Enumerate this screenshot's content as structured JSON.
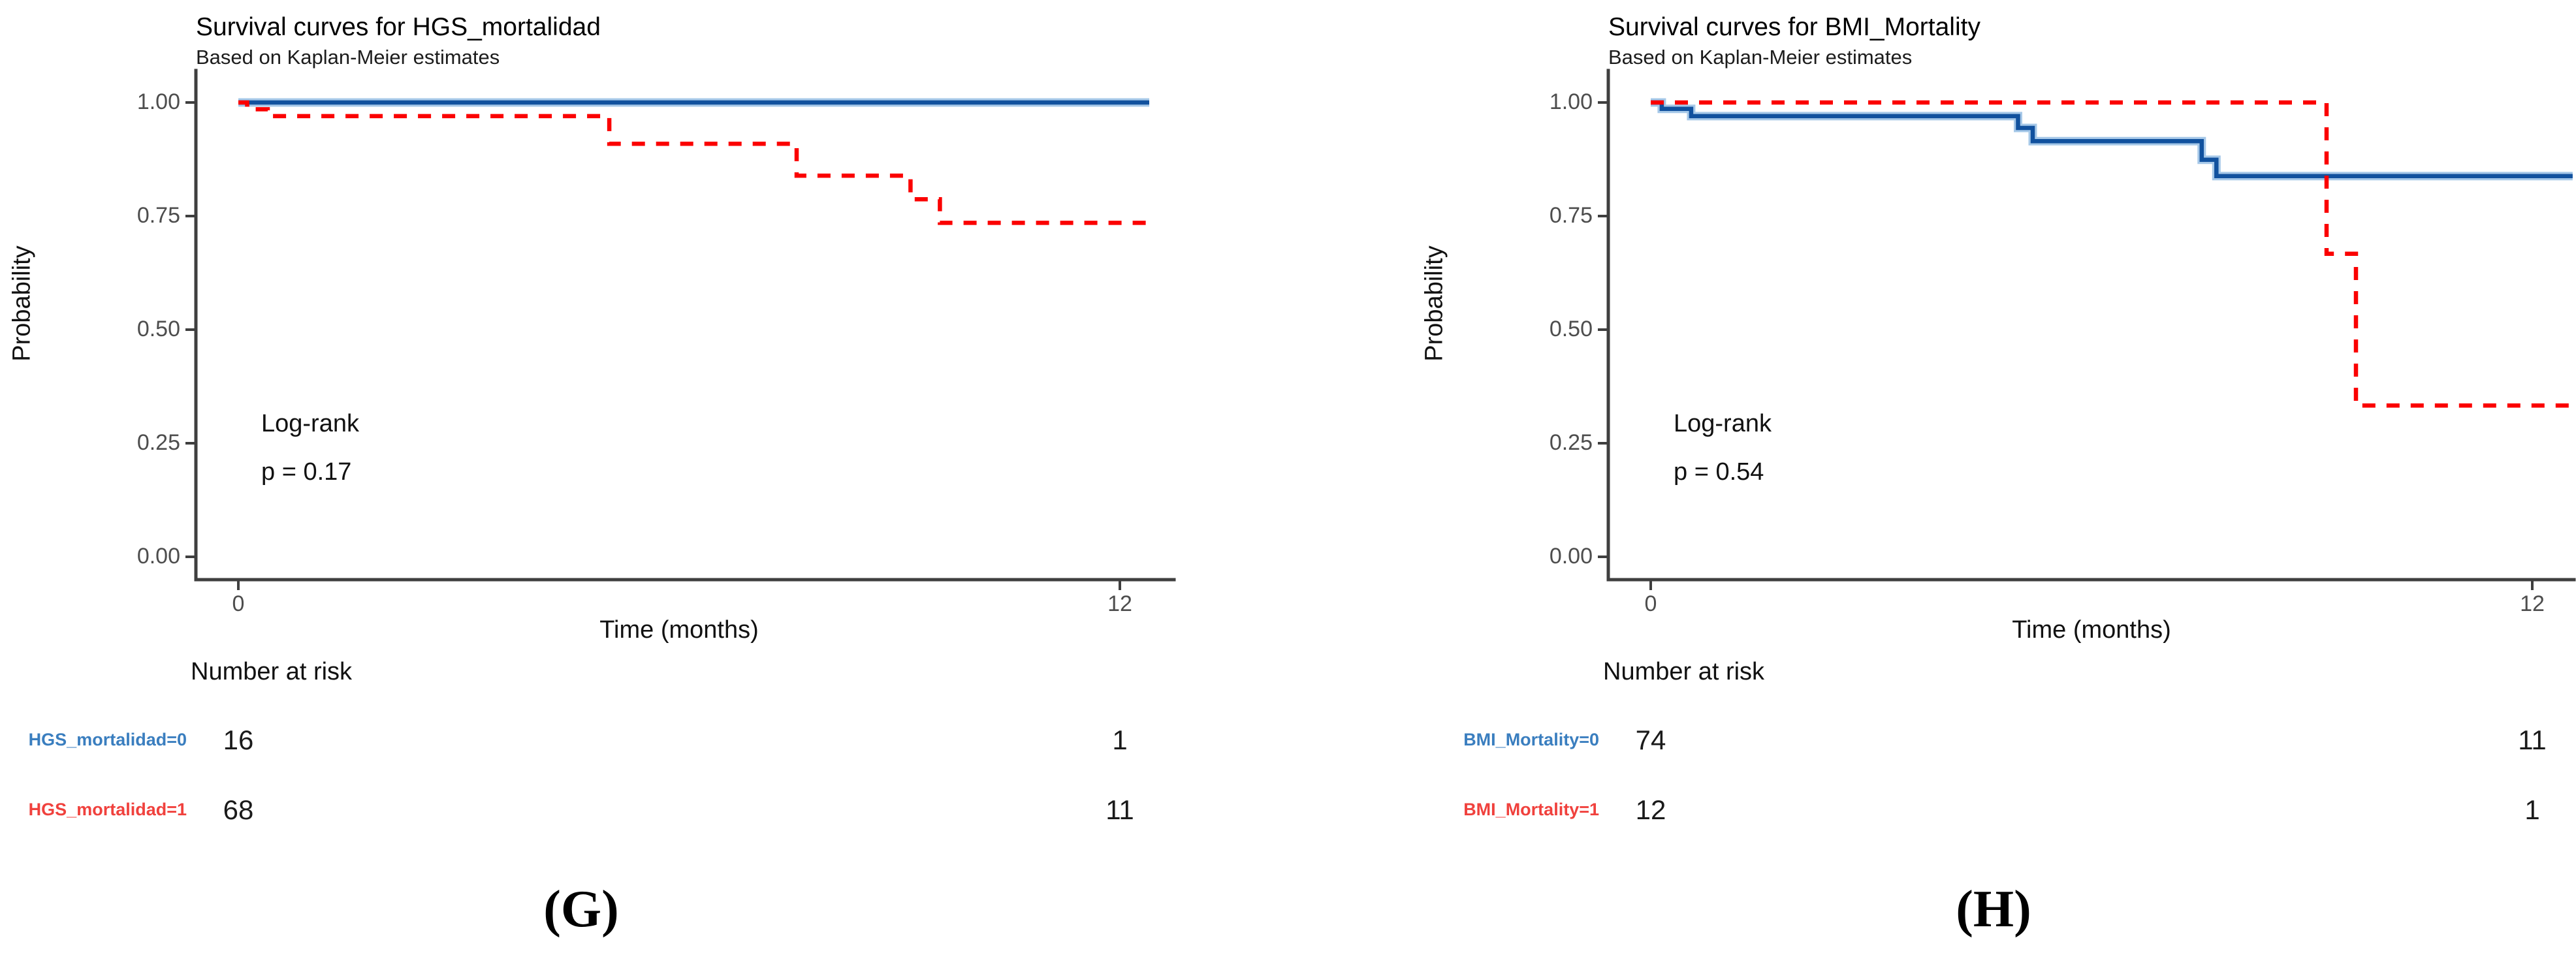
{
  "chart_data": [
    {
      "type": "line",
      "title": "Survival curves for HGS_mortalidad",
      "subtitle": "Based on Kaplan-Meier estimates",
      "xlabel": "Time (months)",
      "ylabel": "Probability",
      "caption": "(G)",
      "xlim": [
        0,
        12.4
      ],
      "ylim": [
        0,
        1
      ],
      "xticks": [
        0,
        12
      ],
      "xtick_labels": [
        "0",
        "12"
      ],
      "yticks": [
        1.0,
        0.75,
        0.5,
        0.25,
        0.0
      ],
      "ytick_labels": [
        "1.00",
        "0.75",
        "0.50",
        "0.25",
        "0.00"
      ],
      "grid": false,
      "legend_position": "none",
      "annotation": {
        "lines": [
          "Log-rank",
          "p = 0.17"
        ]
      },
      "series": [
        {
          "name": "HGS_mortalidad=0",
          "color": "#11519E",
          "band_color": "#A6C8E8",
          "dash": "solid",
          "steps": [
            [
              0,
              1.0
            ],
            [
              12.4,
              1.0
            ]
          ]
        },
        {
          "name": "HGS_mortalidad=1",
          "color": "#FB0000",
          "dash": "dashed",
          "steps": [
            [
              0,
              1.0
            ],
            [
              0.12,
              0.985
            ],
            [
              0.4,
              0.97
            ],
            [
              5.05,
              0.909
            ],
            [
              7.6,
              0.839
            ],
            [
              9.15,
              0.787
            ],
            [
              9.55,
              0.735
            ],
            [
              12.4,
              0.735
            ]
          ]
        }
      ],
      "risk_table": {
        "header": "Number at risk",
        "times": [
          0,
          12
        ],
        "rows": [
          {
            "label": "HGS_mortalidad=0",
            "color": "#3A7EBF",
            "values": [
              "16",
              "1"
            ]
          },
          {
            "label": "HGS_mortalidad=1",
            "color": "#F0413D",
            "values": [
              "68",
              "11"
            ]
          }
        ]
      }
    },
    {
      "type": "line",
      "title": "Survival curves for BMI_Mortality",
      "subtitle": "Based on Kaplan-Meier estimates",
      "xlabel": "Time (months)",
      "ylabel": "Probability",
      "caption": "(H)",
      "xlim": [
        0,
        12.55
      ],
      "ylim": [
        0,
        1
      ],
      "xticks": [
        0,
        12
      ],
      "xtick_labels": [
        "0",
        "12"
      ],
      "yticks": [
        1.0,
        0.75,
        0.5,
        0.25,
        0.0
      ],
      "ytick_labels": [
        "1.00",
        "0.75",
        "0.50",
        "0.25",
        "0.00"
      ],
      "grid": false,
      "legend_position": "none",
      "annotation": {
        "lines": [
          "Log-rank",
          "p = 0.54"
        ]
      },
      "series": [
        {
          "name": "BMI_Mortality=0",
          "color": "#11519E",
          "band_color": "#A6C8E8",
          "dash": "solid",
          "steps": [
            [
              0,
              1.0
            ],
            [
              0.15,
              0.986
            ],
            [
              0.55,
              0.97
            ],
            [
              5.0,
              0.944
            ],
            [
              5.2,
              0.915
            ],
            [
              7.5,
              0.874
            ],
            [
              7.7,
              0.838
            ],
            [
              12.55,
              0.838
            ]
          ]
        },
        {
          "name": "BMI_Mortality=1",
          "color": "#FB0000",
          "dash": "dashed",
          "steps": [
            [
              0,
              1.0
            ],
            [
              9.2,
              0.667
            ],
            [
              9.6,
              0.333
            ],
            [
              12.55,
              0.333
            ]
          ]
        }
      ],
      "risk_table": {
        "header": "Number at risk",
        "times": [
          0,
          12
        ],
        "rows": [
          {
            "label": "BMI_Mortality=0",
            "color": "#3A7EBF",
            "values": [
              "74",
              "11"
            ]
          },
          {
            "label": "BMI_Mortality=1",
            "color": "#F0413D",
            "values": [
              "12",
              "1"
            ]
          }
        ]
      }
    }
  ]
}
